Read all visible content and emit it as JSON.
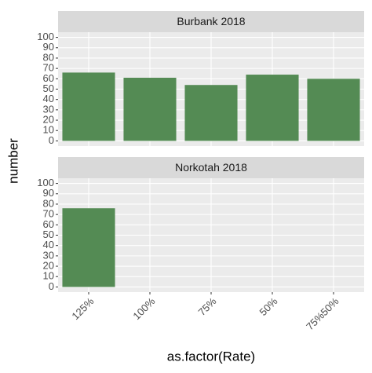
{
  "chart_data": {
    "type": "bar",
    "x_label": "as.factor(Rate)",
    "y_label": "number",
    "categories": [
      "125%",
      "100%",
      "75%",
      "50%",
      "75%50%"
    ],
    "color": "#548b54",
    "facets": [
      {
        "title": "Burbank 2018",
        "values": [
          66,
          61,
          54,
          64,
          60
        ]
      },
      {
        "title": "Norkotah 2018",
        "values": [
          76,
          null,
          null,
          null,
          null
        ]
      }
    ],
    "ylim": [
      -5,
      105
    ],
    "yticks": [
      0,
      10,
      20,
      30,
      40,
      50,
      60,
      70,
      80,
      90,
      100
    ],
    "grid": true
  }
}
